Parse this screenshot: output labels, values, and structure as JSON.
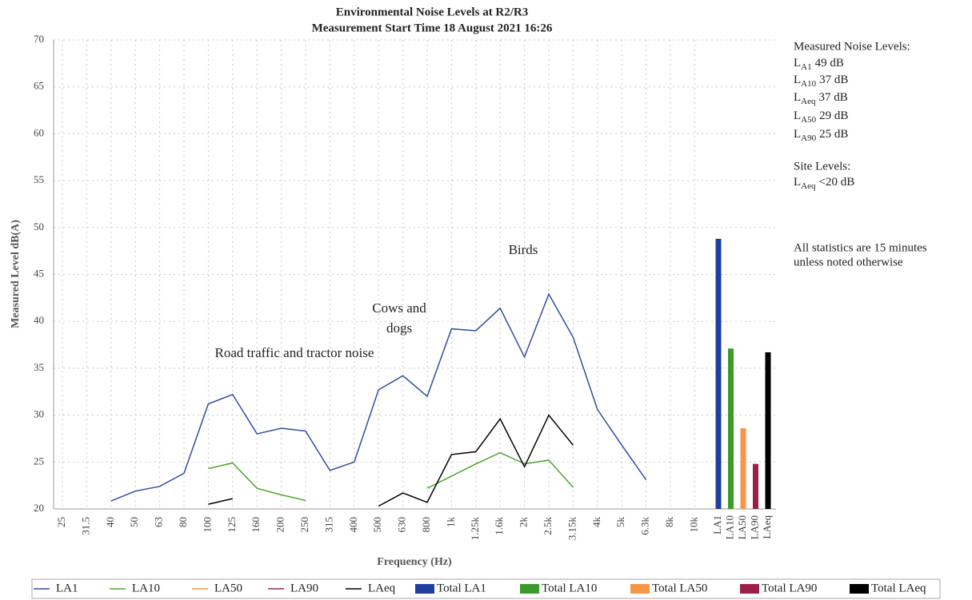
{
  "chart_data": {
    "type": "line",
    "title": "Environmental Noise Levels at R2/R3",
    "subtitle": "Measurement Start Time 18 August 2021 16:26",
    "x_label": "Frequency (Hz)",
    "y_label": "Measured Level dB(A)",
    "categories": [
      "25",
      "31.5",
      "40",
      "50",
      "63",
      "80",
      "100",
      "125",
      "160",
      "200",
      "250",
      "315",
      "400",
      "500",
      "630",
      "800",
      "1k",
      "1.25k",
      "1.6k",
      "2k",
      "2.5k",
      "3.15k",
      "4k",
      "5k",
      "6.3k",
      "8k",
      "10k"
    ],
    "ylim": [
      20,
      70
    ],
    "yticks": [
      20,
      25,
      30,
      35,
      40,
      45,
      50,
      55,
      60,
      65,
      70
    ],
    "grid": true,
    "series": [
      {
        "name": "LA1",
        "color": "#2f4f9f",
        "values": [
          null,
          null,
          20.85,
          21.9,
          22.4,
          23.8,
          31.2,
          32.2,
          28.0,
          28.6,
          28.3,
          24.1,
          25.0,
          32.7,
          34.2,
          32.0,
          39.2,
          39.0,
          41.4,
          36.2,
          42.9,
          38.3,
          30.6,
          26.8,
          23.1,
          null,
          null
        ]
      },
      {
        "name": "LA10",
        "color": "#4ea531",
        "values": [
          null,
          null,
          null,
          null,
          null,
          null,
          24.3,
          24.9,
          22.2,
          21.5,
          20.9,
          null,
          null,
          null,
          null,
          22.2,
          23.5,
          24.8,
          26.0,
          24.8,
          25.2,
          22.3,
          null,
          null,
          null,
          null,
          null
        ]
      },
      {
        "name": "LA50",
        "color": "#f79646",
        "values": [
          null,
          null,
          null,
          null,
          null,
          null,
          null,
          null,
          null,
          null,
          null,
          null,
          null,
          null,
          null,
          null,
          null,
          null,
          null,
          null,
          null,
          null,
          null,
          null,
          null,
          null,
          null
        ]
      },
      {
        "name": "LA90",
        "color": "#9e2a4f",
        "values": [
          null,
          null,
          null,
          null,
          null,
          null,
          null,
          null,
          null,
          null,
          null,
          null,
          null,
          null,
          null,
          null,
          null,
          null,
          null,
          null,
          null,
          null,
          null,
          null,
          null,
          null,
          null
        ]
      },
      {
        "name": "LAeq",
        "color": "#000000",
        "values": [
          null,
          null,
          null,
          null,
          null,
          null,
          20.5,
          21.1,
          null,
          null,
          null,
          null,
          null,
          20.3,
          21.7,
          20.7,
          25.8,
          26.1,
          29.6,
          24.5,
          30.0,
          26.8,
          null,
          null,
          null,
          null,
          null
        ]
      }
    ],
    "bar_categories": [
      "LA1",
      "LA10",
      "LA50",
      "LA90",
      "LAeq"
    ],
    "bar_series": [
      {
        "name": "Total LA1",
        "color": "#1f3f9f",
        "value": 48.8
      },
      {
        "name": "Total LA10",
        "color": "#3a9a2a",
        "value": 37.1
      },
      {
        "name": "Total LA50",
        "color": "#f79646",
        "value": 28.6
      },
      {
        "name": "Total LA90",
        "color": "#9b1f48",
        "value": 24.8
      },
      {
        "name": "Total LAeq",
        "color": "#000000",
        "value": 36.7
      }
    ],
    "annotations": [
      "Road traffic and tractor noise",
      "Cows and",
      "dogs",
      "Birds"
    ],
    "side_heading": "Measured Noise Levels:",
    "side_items": [
      {
        "symbol": "L",
        "sub": "A1",
        "text": "49 dB"
      },
      {
        "symbol": "L",
        "sub": "A10",
        "text": "37 dB"
      },
      {
        "symbol": "L",
        "sub": "Aeq",
        "text": "37 dB"
      },
      {
        "symbol": "L",
        "sub": "A50",
        "text": "29 dB"
      },
      {
        "symbol": "L",
        "sub": "A90",
        "text": "25 dB"
      }
    ],
    "site_heading": "Site Levels:",
    "site_item": {
      "symbol": "L",
      "sub": "Aeq",
      "text": "<20 dB"
    },
    "notes": [
      "All statistics are 15 minutes",
      "unless noted otherwise"
    ]
  }
}
